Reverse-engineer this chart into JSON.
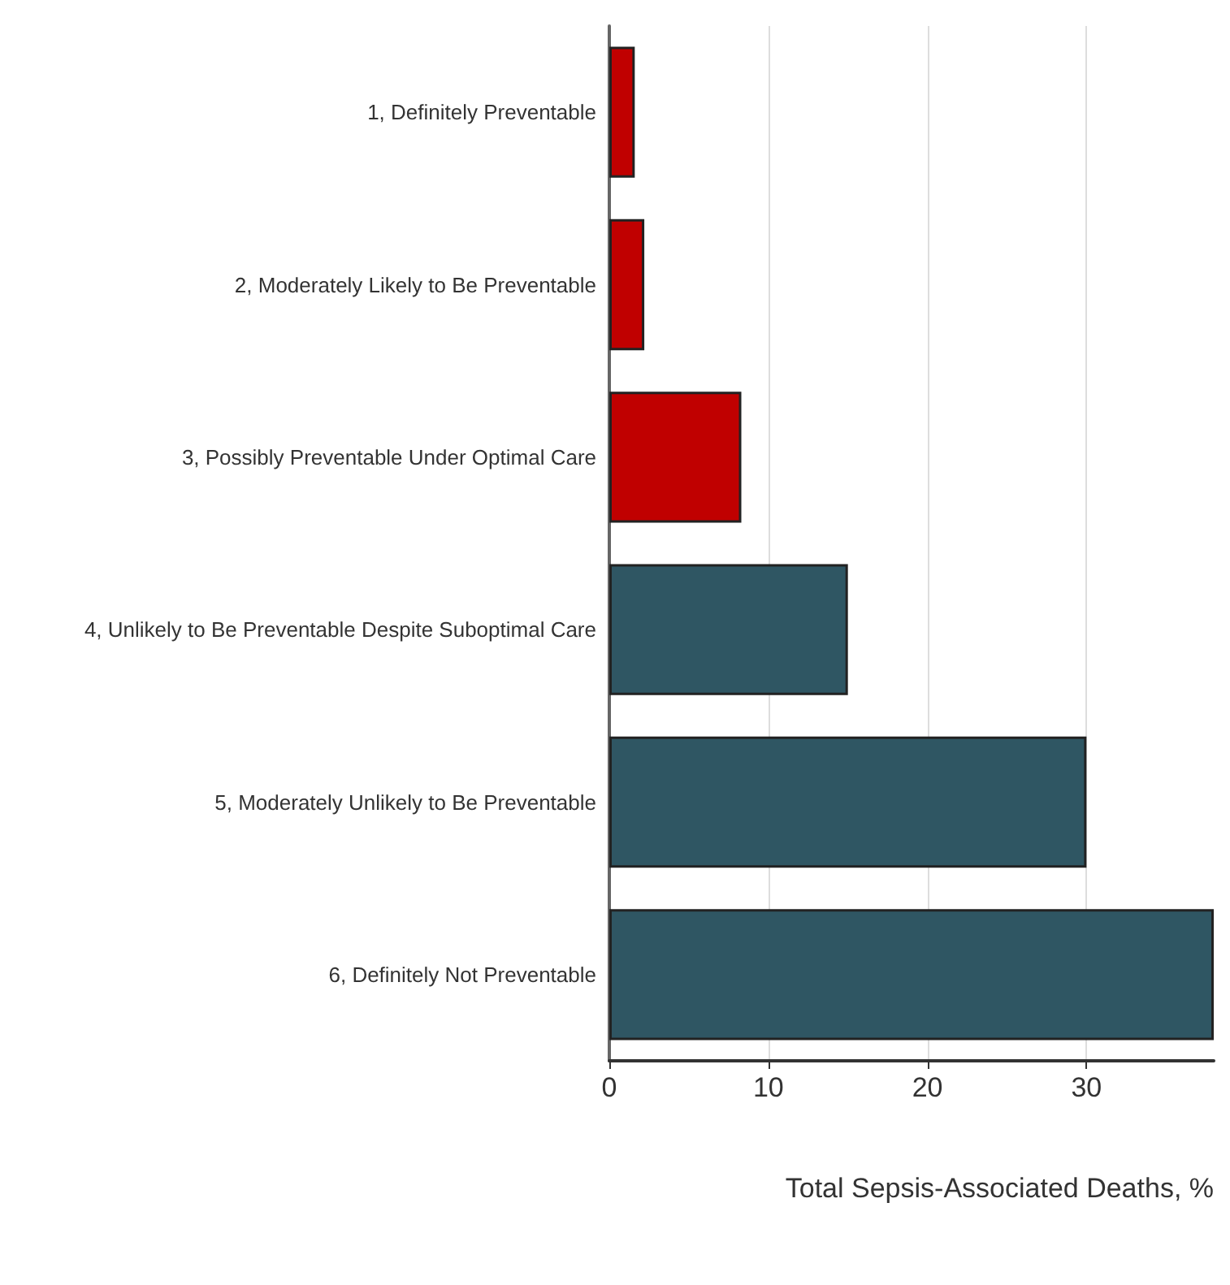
{
  "chart_data": {
    "type": "bar",
    "orientation": "horizontal",
    "xlabel": "Total Sepsis-Associated Deaths, %",
    "categories": [
      "1, Definitely Preventable",
      "2, Moderately Likely to Be Preventable",
      "3, Possibly Preventable Under Optimal Care",
      "4, Unlikely to Be Preventable Despite Suboptimal Care",
      "5, Moderately Unlikely to Be Preventable",
      "6, Definitely Not Preventable"
    ],
    "values": [
      1.6,
      2.2,
      8.3,
      15,
      30,
      38
    ],
    "colors": [
      "#c00000",
      "#c00000",
      "#c00000",
      "#2f5663",
      "#2f5663",
      "#2f5663"
    ],
    "xlim": [
      0,
      38
    ],
    "xticks": [
      0,
      10,
      20,
      30
    ],
    "grid": "x"
  }
}
